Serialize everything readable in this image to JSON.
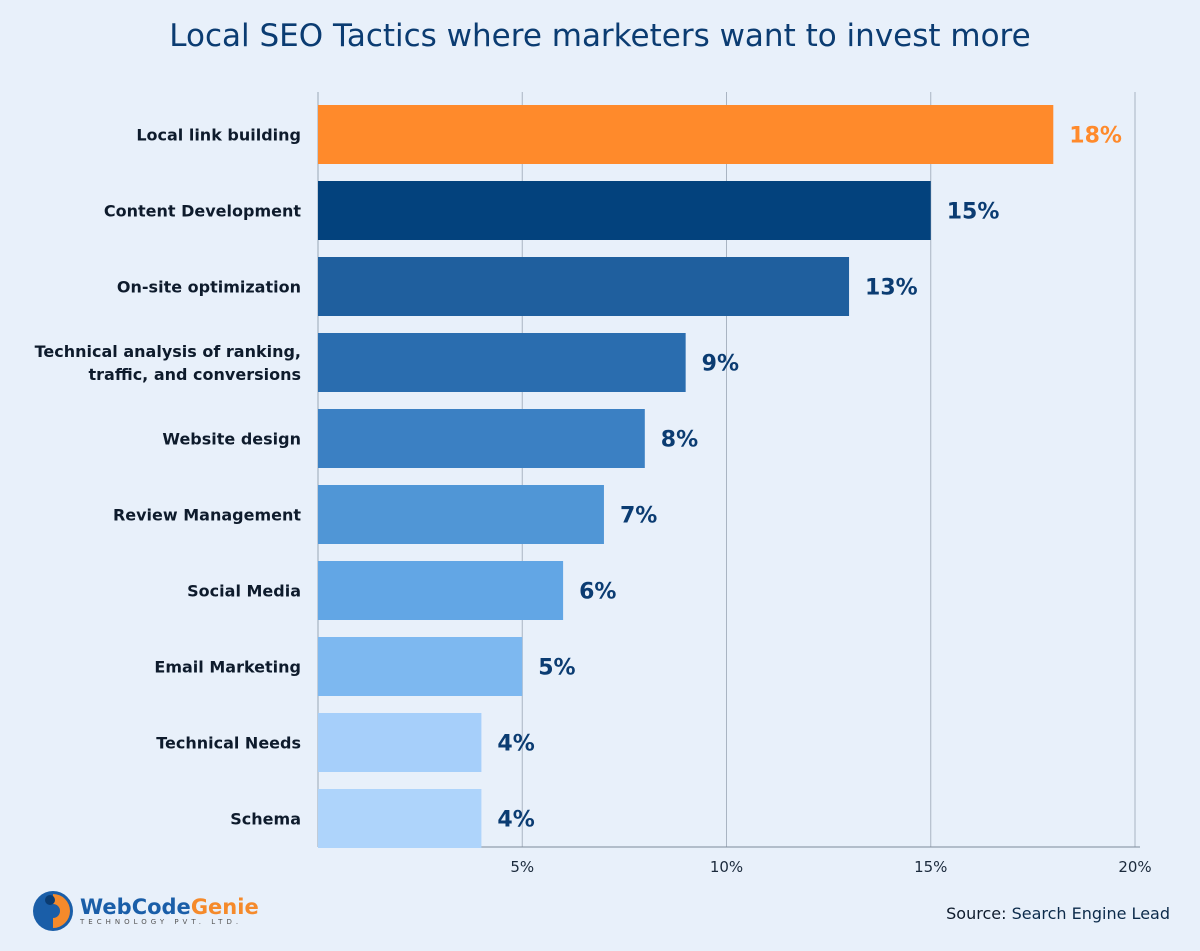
{
  "chart_data": {
    "type": "bar",
    "orientation": "horizontal",
    "title": "Local SEO Tactics where marketers want to invest more",
    "categories": [
      "Local link building",
      "Content Development",
      "On-site optimization",
      "Technical analysis of ranking, traffic, and conversions",
      "Website design",
      "Review Management",
      "Social Media",
      "Email Marketing",
      "Technical Needs",
      "Schema"
    ],
    "category_lines": [
      [
        "Local link building"
      ],
      [
        "Content Development"
      ],
      [
        "On-site optimization"
      ],
      [
        "Technical analysis of ranking,",
        "traffic, and conversions"
      ],
      [
        "Website design"
      ],
      [
        "Review Management"
      ],
      [
        "Social Media"
      ],
      [
        "Email Marketing"
      ],
      [
        "Technical Needs"
      ],
      [
        "Schema"
      ]
    ],
    "values": [
      18,
      15,
      13,
      9,
      8,
      7,
      6,
      5,
      4,
      4
    ],
    "value_labels": [
      "18%",
      "15%",
      "13%",
      "9%",
      "8%",
      "7%",
      "6%",
      "5%",
      "4%",
      "4%"
    ],
    "colors": [
      "#ff8a2b",
      "#03427d",
      "#1f5f9e",
      "#2a6daf",
      "#3b80c3",
      "#5096d6",
      "#62a6e5",
      "#7db8f0",
      "#a6cffa",
      "#aed4fb"
    ],
    "value_label_colors": [
      "#ff8a2b",
      "#0b3c72",
      "#0b3c72",
      "#0b3c72",
      "#0b3c72",
      "#0b3c72",
      "#0b3c72",
      "#0b3c72",
      "#0b3c72",
      "#0b3c72"
    ],
    "xticks": [
      5,
      10,
      15,
      20
    ],
    "xtick_labels": [
      "5%",
      "10%",
      "15%",
      "20%"
    ],
    "xlim": [
      0,
      20
    ],
    "grid": true
  },
  "footer": {
    "logo_name_a": "WebCode",
    "logo_name_b": "Genie",
    "logo_sub": "TECHNOLOGY PVT. LTD.",
    "source_prefix": "Source: ",
    "source_name": "Search Engine Lead"
  }
}
